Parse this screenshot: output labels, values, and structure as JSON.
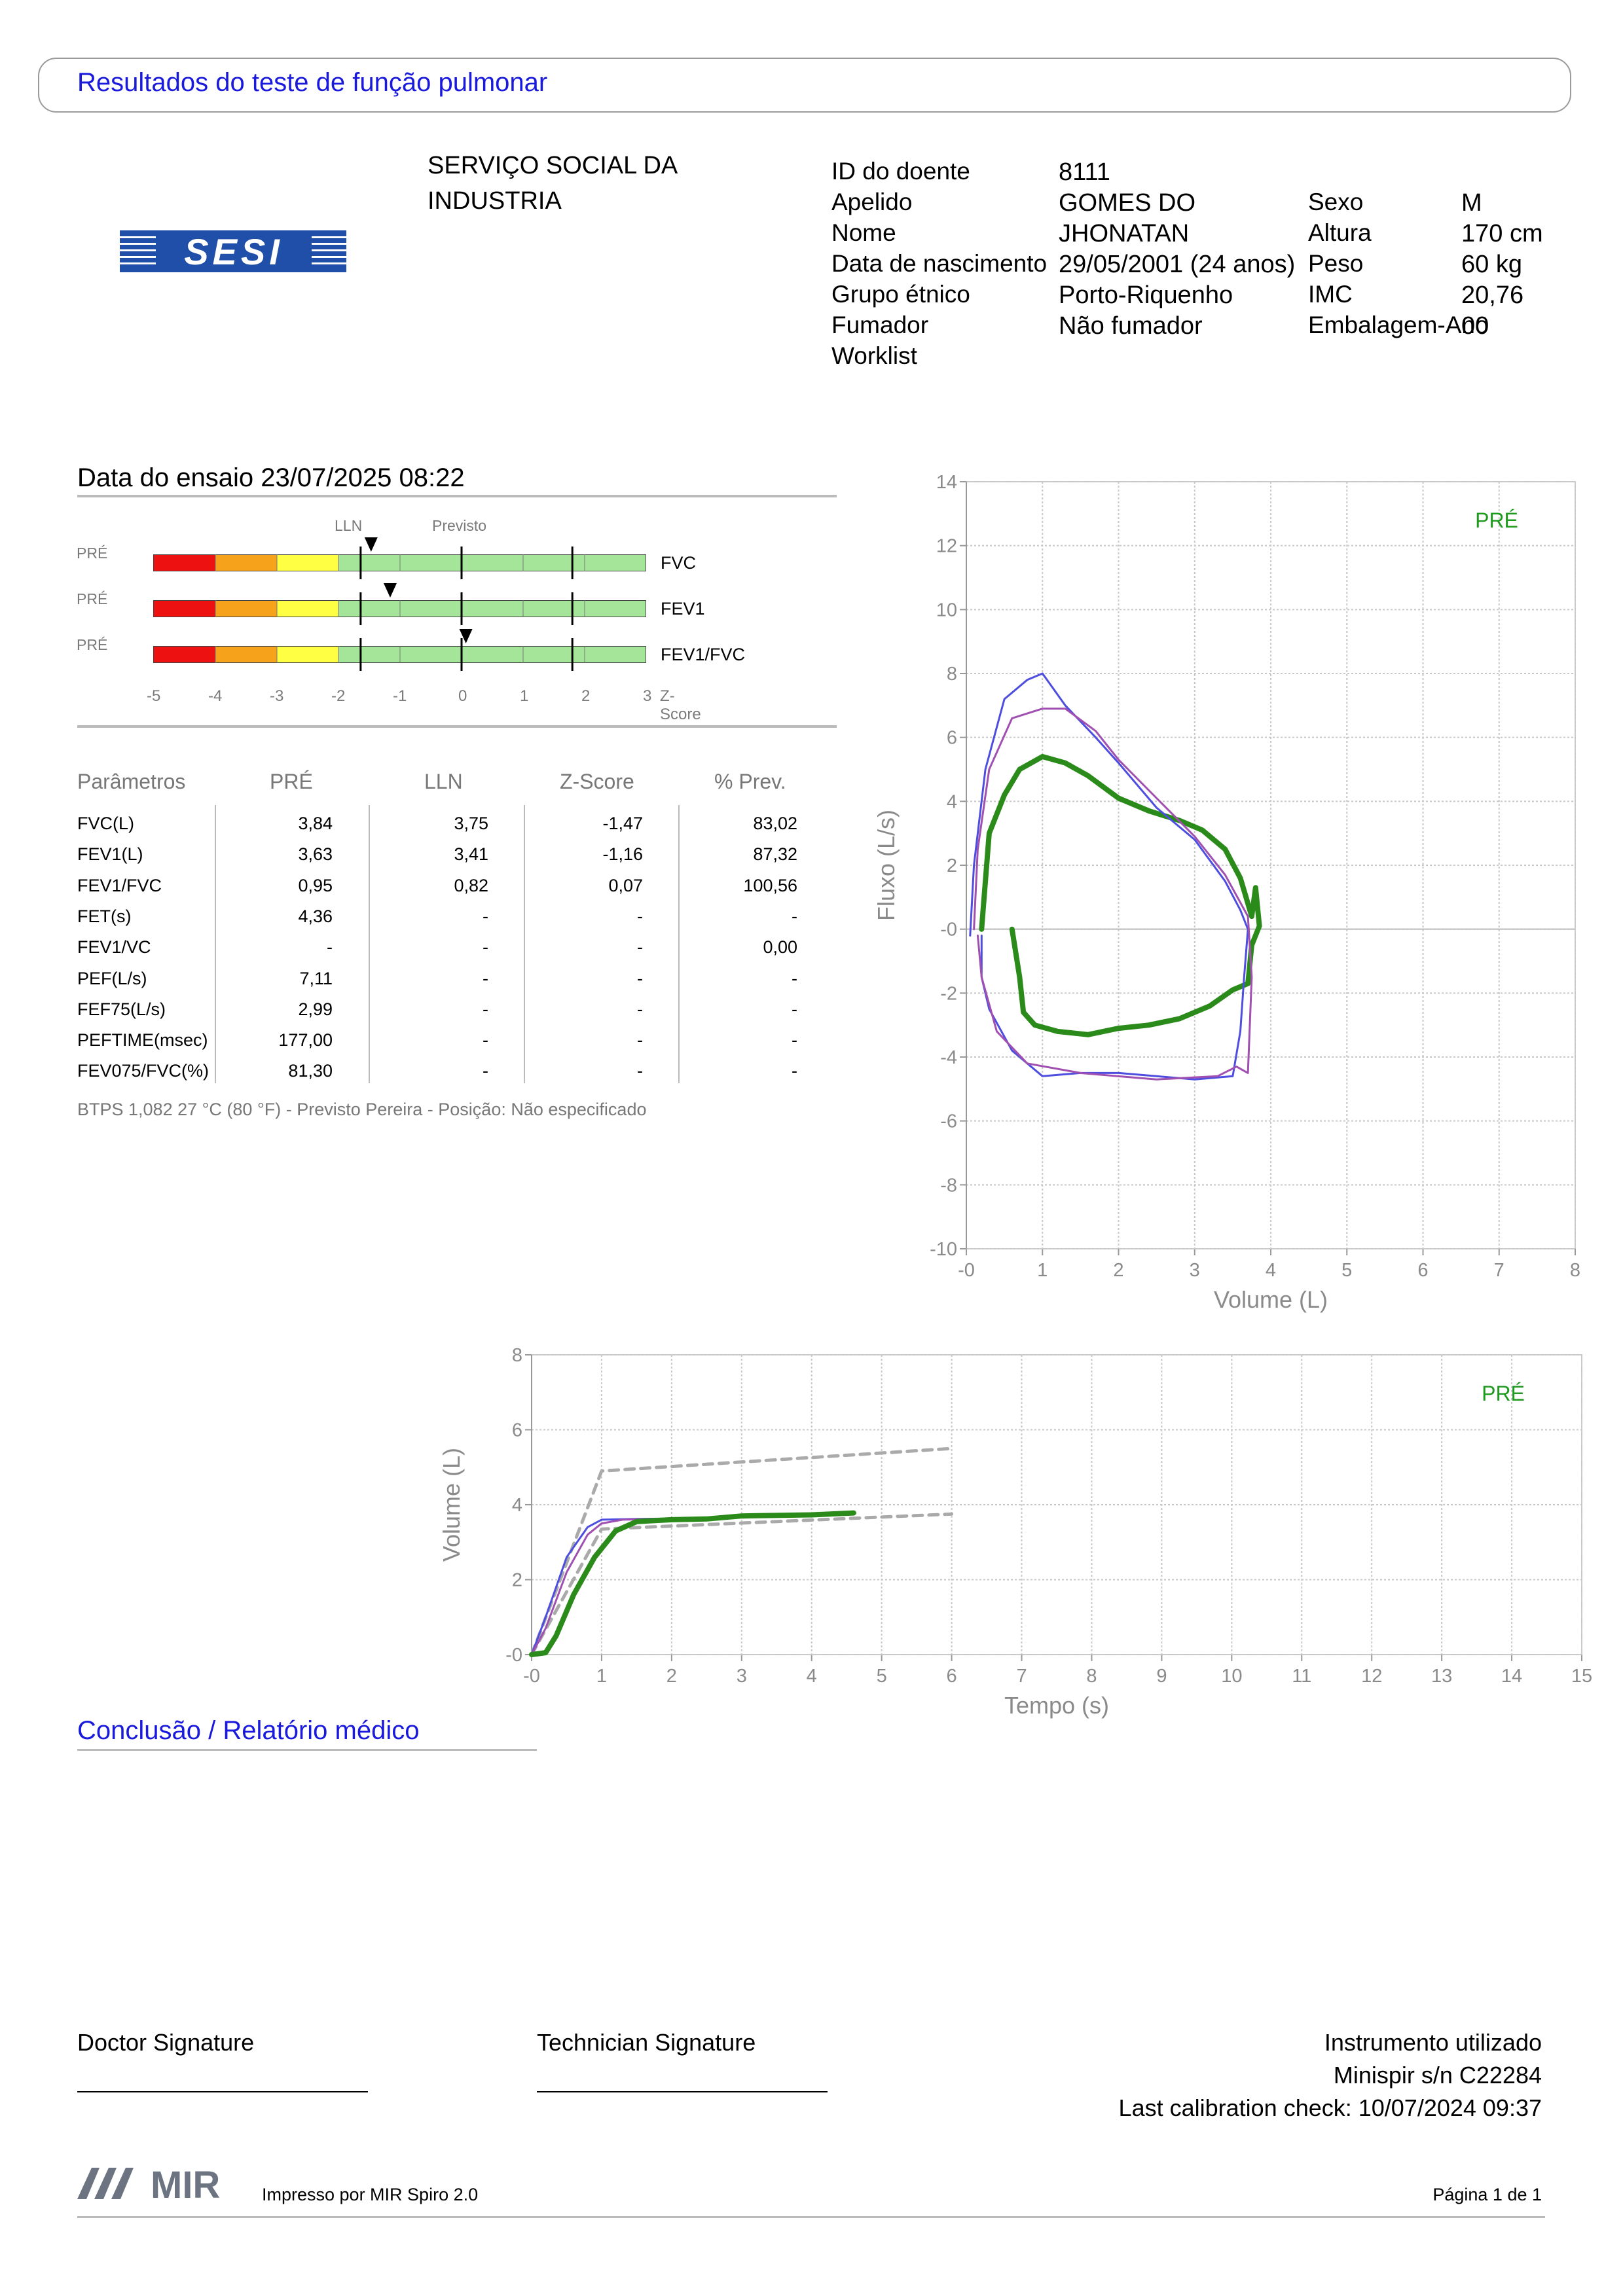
{
  "page_title": "Resultados do teste de função pulmonar",
  "logo": {
    "text": "SESI"
  },
  "institution": {
    "line1": "SERVIÇO SOCIAL DA",
    "line2": "INDUSTRIA"
  },
  "patient": {
    "labels": [
      "ID do doente",
      "Apelido",
      "Nome",
      "Data de nascimento",
      "Grupo étnico",
      "Fumador",
      "Worklist"
    ],
    "values": [
      "8111",
      "GOMES DO",
      "JHONATAN",
      "29/05/2001 (24 anos)",
      "Porto-Riquenho",
      "Não fumador",
      ""
    ],
    "labels2": [
      "Sexo",
      "Altura",
      "Peso",
      "IMC",
      "Embalagem-Ano"
    ],
    "values2": [
      "M",
      "170 cm",
      "60 kg",
      "20,76",
      "00"
    ]
  },
  "test_date": "Data do ensaio 23/07/2025 08:22",
  "zscore_chart": {
    "header_lln": "LLN",
    "header_predicted": "Previsto",
    "phase_label": "PRÉ",
    "rows": [
      {
        "name": "FVC",
        "marker": -1.47
      },
      {
        "name": "FEV1",
        "marker": -1.16
      },
      {
        "name": "FEV1/FVC",
        "marker": 0.07
      }
    ],
    "axis_ticks": [
      "-5",
      "-4",
      "-3",
      "-2",
      "-1",
      "0",
      "1",
      "2",
      "3"
    ],
    "axis_label": "Z-Score",
    "colors": {
      "red": "#ee1111",
      "orange": "#f7a21b",
      "yellow": "#ffff44",
      "green": "#a4e59a"
    }
  },
  "params_table": {
    "headers": [
      "Parâmetros",
      "PRÉ",
      "LLN",
      "Z-Score",
      "% Prev."
    ],
    "rows": [
      [
        "FVC(L)",
        "3,84",
        "3,75",
        "-1,47",
        "83,02"
      ],
      [
        "FEV1(L)",
        "3,63",
        "3,41",
        "-1,16",
        "87,32"
      ],
      [
        "FEV1/FVC",
        "0,95",
        "0,82",
        "0,07",
        "100,56"
      ],
      [
        "FET(s)",
        "4,36",
        "-",
        "-",
        "-"
      ],
      [
        "FEV1/VC",
        "-",
        "-",
        "-",
        "0,00"
      ],
      [
        "PEF(L/s)",
        "7,11",
        "-",
        "-",
        "-"
      ],
      [
        "FEF75(L/s)",
        "2,99",
        "-",
        "-",
        "-"
      ],
      [
        "PEFTIME(msec)",
        "177,00",
        "-",
        "-",
        "-"
      ],
      [
        "FEV075/FVC(%)",
        "81,30",
        "-",
        "-",
        "-"
      ]
    ],
    "footnote": "BTPS 1,082 27 °C (80 °F) - Previsto Pereira - Posição: Não especificado"
  },
  "chart_data": [
    {
      "type": "line",
      "title": "",
      "xlabel": "Volume (L)",
      "ylabel": "Fluxo (L/s)",
      "xlim": [
        0,
        8
      ],
      "ylim": [
        -10,
        14
      ],
      "x_ticks": [
        "-0",
        "1",
        "2",
        "3",
        "4",
        "5",
        "6",
        "7",
        "8"
      ],
      "y_ticks": [
        "14",
        "12",
        "10",
        "8",
        "6",
        "4",
        "2",
        "-0",
        "-2",
        "-4",
        "-6",
        "-8",
        "-10"
      ],
      "legend": "PRÉ",
      "series": [
        {
          "color": "#2a8a1a",
          "points": [
            [
              0.2,
              0
            ],
            [
              0.25,
              1.5
            ],
            [
              0.3,
              3
            ],
            [
              0.5,
              4.2
            ],
            [
              0.7,
              5.0
            ],
            [
              1.0,
              5.4
            ],
            [
              1.3,
              5.2
            ],
            [
              1.6,
              4.8
            ],
            [
              2.0,
              4.1
            ],
            [
              2.4,
              3.7
            ],
            [
              2.8,
              3.4
            ],
            [
              3.1,
              3.1
            ],
            [
              3.4,
              2.5
            ],
            [
              3.6,
              1.6
            ],
            [
              3.75,
              0.4
            ],
            [
              3.8,
              1.3
            ],
            [
              3.85,
              0.1
            ],
            [
              3.75,
              -0.5
            ],
            [
              3.7,
              -1.7
            ],
            [
              3.5,
              -1.9
            ],
            [
              3.2,
              -2.4
            ],
            [
              2.8,
              -2.8
            ],
            [
              2.4,
              -3.0
            ],
            [
              2.0,
              -3.1
            ],
            [
              1.6,
              -3.3
            ],
            [
              1.2,
              -3.2
            ],
            [
              0.9,
              -3.0
            ],
            [
              0.75,
              -2.6
            ],
            [
              0.7,
              -1.5
            ],
            [
              0.6,
              0
            ]
          ]
        },
        {
          "color": "#4d4de0",
          "points": [
            [
              0.05,
              -0.2
            ],
            [
              0.1,
              2
            ],
            [
              0.25,
              5
            ],
            [
              0.5,
              7.2
            ],
            [
              0.8,
              7.8
            ],
            [
              1.0,
              8.0
            ],
            [
              1.3,
              7.0
            ],
            [
              1.7,
              6.0
            ],
            [
              2.0,
              5.2
            ],
            [
              2.5,
              3.8
            ],
            [
              3.0,
              2.8
            ],
            [
              3.4,
              1.5
            ],
            [
              3.6,
              0.6
            ],
            [
              3.7,
              0
            ],
            [
              3.65,
              -1.5
            ],
            [
              3.6,
              -3.2
            ],
            [
              3.5,
              -4.6
            ],
            [
              3.0,
              -4.7
            ],
            [
              2.5,
              -4.6
            ],
            [
              2.0,
              -4.5
            ],
            [
              1.5,
              -4.5
            ],
            [
              1.0,
              -4.6
            ],
            [
              0.6,
              -3.8
            ],
            [
              0.3,
              -2.5
            ],
            [
              0.2,
              -1.5
            ],
            [
              0.2,
              -0.2
            ]
          ]
        },
        {
          "color": "#a050b0",
          "points": [
            [
              0.1,
              0
            ],
            [
              0.15,
              2.5
            ],
            [
              0.3,
              5
            ],
            [
              0.6,
              6.6
            ],
            [
              1.0,
              6.9
            ],
            [
              1.3,
              6.9
            ],
            [
              1.7,
              6.2
            ],
            [
              2.0,
              5.3
            ],
            [
              2.5,
              4.1
            ],
            [
              3.0,
              2.9
            ],
            [
              3.4,
              1.7
            ],
            [
              3.7,
              0.4
            ],
            [
              3.75,
              -1.5
            ],
            [
              3.7,
              -4.5
            ],
            [
              3.55,
              -4.3
            ],
            [
              3.3,
              -4.6
            ],
            [
              2.5,
              -4.7
            ],
            [
              1.5,
              -4.5
            ],
            [
              0.8,
              -4.2
            ],
            [
              0.4,
              -3.2
            ],
            [
              0.2,
              -1.5
            ],
            [
              0.15,
              -0.2
            ]
          ]
        }
      ]
    },
    {
      "type": "line",
      "title": "",
      "xlabel": "Tempo (s)",
      "ylabel": "Volume (L)",
      "xlim": [
        0,
        15
      ],
      "ylim": [
        0,
        8
      ],
      "x_ticks": [
        "-0",
        "1",
        "2",
        "3",
        "4",
        "5",
        "6",
        "7",
        "8",
        "9",
        "10",
        "11",
        "12",
        "13",
        "14",
        "15"
      ],
      "y_ticks": [
        "8",
        "6",
        "4",
        "2",
        "-0"
      ],
      "legend": "PRÉ",
      "series": [
        {
          "color": "#aaaaaa",
          "dashed": true,
          "points": [
            [
              0,
              0
            ],
            [
              1,
              4.9
            ],
            [
              6,
              5.5
            ]
          ]
        },
        {
          "color": "#aaaaaa",
          "dashed": true,
          "points": [
            [
              0,
              0
            ],
            [
              1,
              3.35
            ],
            [
              6,
              3.75
            ]
          ]
        },
        {
          "color": "#4d4de0",
          "points": [
            [
              0,
              0
            ],
            [
              0.2,
              1
            ],
            [
              0.5,
              2.6
            ],
            [
              0.8,
              3.4
            ],
            [
              1.0,
              3.6
            ],
            [
              1.5,
              3.62
            ],
            [
              2,
              3.63
            ],
            [
              3,
              3.68
            ],
            [
              4,
              3.7
            ]
          ]
        },
        {
          "color": "#a050b0",
          "points": [
            [
              0,
              0
            ],
            [
              0.2,
              0.7
            ],
            [
              0.5,
              2.2
            ],
            [
              0.8,
              3.2
            ],
            [
              1.0,
              3.5
            ],
            [
              1.3,
              3.6
            ],
            [
              2,
              3.63
            ],
            [
              3,
              3.68
            ],
            [
              4.1,
              3.72
            ]
          ]
        },
        {
          "color": "#2a8a1a",
          "points": [
            [
              0,
              0
            ],
            [
              0.2,
              0.05
            ],
            [
              0.35,
              0.5
            ],
            [
              0.6,
              1.6
            ],
            [
              0.9,
              2.6
            ],
            [
              1.2,
              3.3
            ],
            [
              1.5,
              3.55
            ],
            [
              2,
              3.6
            ],
            [
              2.5,
              3.62
            ],
            [
              3,
              3.7
            ],
            [
              4,
              3.73
            ],
            [
              4.6,
              3.78
            ]
          ]
        }
      ]
    }
  ],
  "conclusion_title": "Conclusão / Relatório médico",
  "signatures": {
    "doctor": "Doctor Signature",
    "technician": "Technician Signature"
  },
  "instrument": {
    "line1": "Instrumento utilizado",
    "line2": "Minispir s/n C22284",
    "line3": "Last calibration check: 10/07/2024 09:37"
  },
  "footer": {
    "brand": "MIR",
    "printed_by": "Impresso por MIR Spiro 2.0",
    "page": "Página 1 de 1"
  }
}
